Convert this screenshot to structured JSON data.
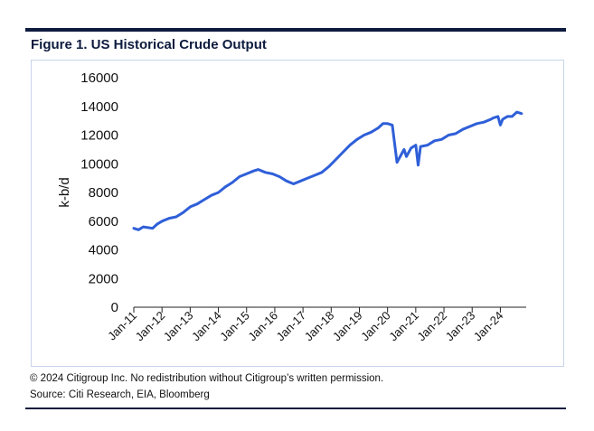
{
  "figure": {
    "title": "Figure 1. US Historical Crude Output",
    "copyright": "© 2024 Citigroup Inc. No redistribution without Citigroup’s written permission.",
    "source": "Source: Citi Research, EIA, Bloomberg"
  },
  "colors": {
    "line": "#2f5fd8",
    "axis": "#222222",
    "frame": "#c9d4ea",
    "rule": "#0d1b3e"
  },
  "chart_data": {
    "type": "line",
    "title": "Figure 1. US Historical Crude Output",
    "xlabel": "",
    "ylabel": "k-b/d",
    "ylim": [
      0,
      16000
    ],
    "yticks": [
      0,
      2000,
      4000,
      6000,
      8000,
      10000,
      12000,
      14000,
      16000
    ],
    "xlim": [
      "2011-01",
      "2024-12"
    ],
    "xticks": [
      "Jan-11",
      "Jan-12",
      "Jan-13",
      "Jan-14",
      "Jan-15",
      "Jan-16",
      "Jan-17",
      "Jan-18",
      "Jan-19",
      "Jan-20",
      "Jan-21",
      "Jan-22",
      "Jan-23",
      "Jan-24"
    ],
    "grid": false,
    "legend": "none",
    "series": [
      {
        "x": [
          "2011-01",
          "2011-03",
          "2011-05",
          "2011-07",
          "2011-09",
          "2011-11",
          "2012-01",
          "2012-04",
          "2012-07",
          "2012-10",
          "2013-01",
          "2013-04",
          "2013-07",
          "2013-10",
          "2014-01",
          "2014-04",
          "2014-07",
          "2014-10",
          "2015-01",
          "2015-04",
          "2015-06",
          "2015-09",
          "2015-12",
          "2016-03",
          "2016-06",
          "2016-09",
          "2016-12",
          "2017-03",
          "2017-06",
          "2017-09",
          "2017-12",
          "2018-03",
          "2018-06",
          "2018-09",
          "2018-12",
          "2019-03",
          "2019-06",
          "2019-09",
          "2019-11",
          "2020-01",
          "2020-03",
          "2020-05",
          "2020-07",
          "2020-08",
          "2020-09",
          "2020-11",
          "2021-01",
          "2021-02",
          "2021-03",
          "2021-06",
          "2021-09",
          "2021-12",
          "2022-03",
          "2022-06",
          "2022-09",
          "2022-12",
          "2023-03",
          "2023-06",
          "2023-09",
          "2023-10",
          "2023-12",
          "2024-01",
          "2024-02",
          "2024-04",
          "2024-06",
          "2024-08",
          "2024-10"
        ],
        "values": [
          5500,
          5400,
          5600,
          5550,
          5500,
          5800,
          6000,
          6200,
          6300,
          6600,
          7000,
          7200,
          7500,
          7800,
          8000,
          8400,
          8700,
          9100,
          9300,
          9500,
          9600,
          9400,
          9300,
          9100,
          8800,
          8600,
          8800,
          9000,
          9200,
          9400,
          9800,
          10300,
          10800,
          11300,
          11700,
          12000,
          12200,
          12500,
          12800,
          12800,
          12700,
          10100,
          10700,
          11000,
          10500,
          11100,
          11300,
          9900,
          11200,
          11300,
          11600,
          11700,
          12000,
          12100,
          12400,
          12600,
          12800,
          12900,
          13100,
          13200,
          13300,
          12700,
          13100,
          13300,
          13300,
          13600,
          13500
        ]
      }
    ]
  }
}
